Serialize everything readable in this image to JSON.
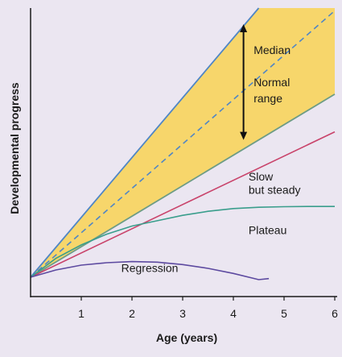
{
  "chart_data": {
    "type": "line",
    "title": "",
    "xlabel": "Age (years)",
    "ylabel": "Developmental progress",
    "xlim": [
      0,
      6
    ],
    "ylim": [
      0,
      1
    ],
    "x_ticks": [
      1,
      2,
      3,
      4,
      5,
      6
    ],
    "y_ticks": [],
    "grid": false,
    "normal_range": {
      "label": "Normal range",
      "fill_color": "#f7d66b",
      "upper": {
        "x": [
          0,
          4.5
        ],
        "y": [
          0,
          1.0
        ]
      },
      "lower": {
        "x": [
          0,
          6
        ],
        "y": [
          0,
          0.68
        ]
      }
    },
    "series": [
      {
        "name": "Median",
        "style": "dashed",
        "color": "#4f86c6",
        "x": [
          0,
          6
        ],
        "y": [
          0,
          0.99
        ]
      },
      {
        "name": "Slow but steady",
        "style": "solid",
        "color": "#c9446b",
        "x": [
          0,
          6
        ],
        "y": [
          0,
          0.54
        ]
      },
      {
        "name": "Plateau",
        "style": "solid",
        "color": "#3a9e8c",
        "x": [
          0,
          0.5,
          1,
          1.5,
          2,
          2.5,
          3,
          3.5,
          4,
          4.5,
          5,
          5.5,
          6
        ],
        "y": [
          0,
          0.07,
          0.12,
          0.16,
          0.19,
          0.21,
          0.23,
          0.245,
          0.255,
          0.26,
          0.262,
          0.263,
          0.263
        ]
      },
      {
        "name": "Regression",
        "style": "solid",
        "color": "#5d4aa0",
        "x": [
          0,
          0.5,
          1,
          1.5,
          2,
          2.5,
          3,
          3.5,
          4,
          4.5,
          4.7
        ],
        "y": [
          0,
          0.027,
          0.045,
          0.054,
          0.058,
          0.056,
          0.047,
          0.033,
          0.014,
          -0.009,
          -0.005
        ]
      }
    ],
    "range_arrow": {
      "x": 4.2,
      "y_from": 0.51,
      "y_to": 0.94
    },
    "annotations": [
      {
        "text": "Median",
        "x": 4.4,
        "y": 0.83
      },
      {
        "text": "Normal",
        "x": 4.4,
        "y": 0.71
      },
      {
        "text": "range",
        "x": 4.4,
        "y": 0.65
      },
      {
        "text": "Slow",
        "x": 4.3,
        "y": 0.36
      },
      {
        "text": "but steady",
        "x": 4.3,
        "y": 0.31
      },
      {
        "text": "Plateau",
        "x": 4.3,
        "y": 0.16
      },
      {
        "text": "Regression",
        "x": 2.35,
        "y": 0.02
      }
    ],
    "colors": {
      "axis": "#1a1a1a",
      "upper_bound": "#4f86c6",
      "lower_bound": "#6d9c86",
      "arrow": "#111111",
      "background": "#ebe6f1"
    }
  }
}
